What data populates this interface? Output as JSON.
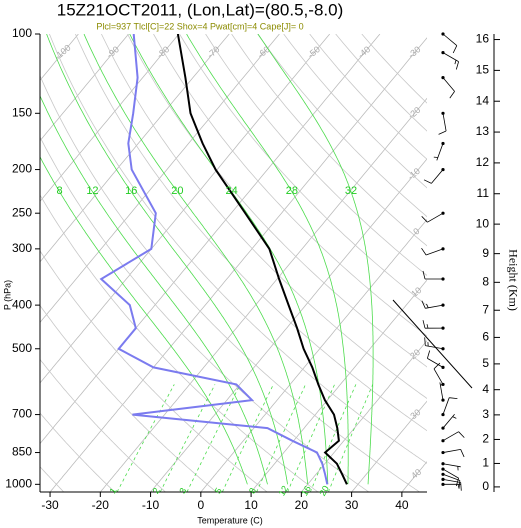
{
  "chart_data": {
    "type": "skewt",
    "title": "15Z21OCT2011, (Lon,Lat)=(80.5,-8.0)",
    "subtitle": "Plcl=937 Tlcl[C]=22 Shox=4 Pwat[cm]=4 Cape[J]= 0",
    "x_label": "Temperature (C)",
    "y_label": "P (hPa)",
    "y2_label": "Height (Km)",
    "log_y": true,
    "xlim": [
      -32,
      45
    ],
    "ylim": [
      1040,
      100
    ],
    "xticks": [
      -30,
      -20,
      -10,
      0,
      10,
      20,
      30,
      40
    ],
    "yticks": [
      100,
      150,
      200,
      250,
      300,
      400,
      500,
      700,
      850,
      1000
    ],
    "height_ticks": [
      0,
      1,
      2,
      3,
      4,
      5,
      6,
      7,
      8,
      9,
      10,
      11,
      12,
      13,
      14,
      15,
      16
    ],
    "isotherms": [
      -110,
      -100,
      -90,
      -80,
      -70,
      -60,
      -50,
      -40,
      -30,
      -20,
      -10,
      0,
      10,
      20,
      30,
      40
    ],
    "dry_adiabats": [
      -30,
      -20,
      -10,
      0,
      10,
      20,
      30,
      40,
      50,
      60,
      70,
      80,
      90,
      100,
      110,
      120,
      130,
      140,
      150,
      160,
      170
    ],
    "moist_adiabats": [
      8,
      12,
      16,
      20,
      24,
      28,
      32
    ],
    "mixing_ratios": [
      1,
      2,
      3,
      5,
      8,
      12,
      16,
      20
    ],
    "pressure": [
      1000,
      950,
      900,
      850,
      800,
      750,
      700,
      650,
      600,
      550,
      500,
      450,
      400,
      350,
      300,
      250,
      200,
      175,
      150,
      125,
      100
    ],
    "series": [
      {
        "name": "Temperature",
        "color": "#000000",
        "values": [
          27.8,
          25.2,
          22.4,
          18.2,
          19.0,
          16.6,
          13.7,
          9.5,
          5.6,
          1.6,
          -3.2,
          -7.9,
          -13.4,
          -19.6,
          -26.5,
          -37.2,
          -50.3,
          -57.2,
          -64.6,
          -71.5,
          -80.2
        ]
      },
      {
        "name": "Dewpoint",
        "color": "#7b7bef",
        "values": [
          23.9,
          21.8,
          19.5,
          16.6,
          9.7,
          2.7,
          -26.4,
          -5,
          -10.7,
          -30,
          -40,
          -40,
          -45,
          -55,
          -50,
          -55,
          -67,
          -72,
          -76,
          -81,
          -89
        ]
      }
    ],
    "winds": {
      "pressure": [
        1000,
        975,
        950,
        925,
        900,
        850,
        800,
        750,
        700,
        650,
        600,
        550,
        500,
        450,
        400,
        350,
        300,
        250,
        200,
        175,
        150,
        125,
        110,
        100
      ],
      "direction": [
        90,
        100,
        110,
        120,
        100,
        80,
        60,
        40,
        20,
        350,
        330,
        300,
        280,
        270,
        260,
        270,
        250,
        240,
        220,
        200,
        170,
        140,
        120,
        130
      ],
      "speed": [
        5,
        10,
        10,
        10,
        5,
        10,
        10,
        5,
        10,
        5,
        10,
        10,
        15,
        15,
        15,
        10,
        10,
        10,
        10,
        5,
        10,
        10,
        15,
        10
      ]
    },
    "grid": true
  }
}
